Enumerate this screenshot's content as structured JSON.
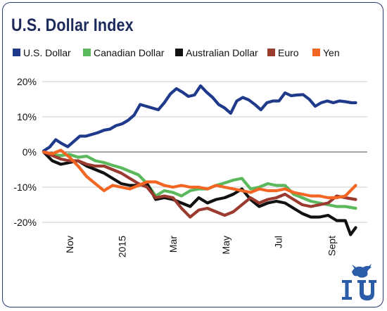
{
  "title": "U.S. Dollar Index",
  "colors": {
    "border": "#2d3a6e",
    "title": "#1b2a5a",
    "grid": "#bdbdbd",
    "baseline": "#4a4a4a",
    "logo": "#2a5ca8"
  },
  "chart_data": {
    "type": "line",
    "title": "U.S. Dollar Index",
    "xlabel": "",
    "ylabel": "",
    "x_start": "2014-10-01",
    "x_end": "2015-09-30",
    "x_tick_labels": [
      "Nov",
      "2015",
      "Mar",
      "May",
      "Jul",
      "Sept"
    ],
    "x_tick_dates": [
      "2014-11-01",
      "2015-01-01",
      "2015-03-01",
      "2015-05-01",
      "2015-07-01",
      "2015-09-01"
    ],
    "y_ticks": [
      20,
      10,
      0,
      -10,
      -20
    ],
    "y_tick_labels": [
      "20%",
      "10%",
      "0%",
      "-10%",
      "-20%"
    ],
    "ylim": [
      -27,
      23
    ],
    "y_unit": "%",
    "grid": true,
    "legend_position": "top",
    "series": [
      {
        "name": "U.S. Dollar",
        "color": "#1f3a8a",
        "dates": [
          "2014-10-01",
          "2014-10-08",
          "2014-10-15",
          "2014-10-22",
          "2014-10-29",
          "2014-11-05",
          "2014-11-12",
          "2014-11-19",
          "2014-11-26",
          "2014-12-03",
          "2014-12-10",
          "2014-12-17",
          "2014-12-24",
          "2014-12-31",
          "2015-01-07",
          "2015-01-14",
          "2015-01-21",
          "2015-01-28",
          "2015-02-04",
          "2015-02-11",
          "2015-02-18",
          "2015-02-25",
          "2015-03-04",
          "2015-03-11",
          "2015-03-18",
          "2015-03-25",
          "2015-04-01",
          "2015-04-08",
          "2015-04-15",
          "2015-04-22",
          "2015-04-29",
          "2015-05-06",
          "2015-05-13",
          "2015-05-20",
          "2015-05-27",
          "2015-06-03",
          "2015-06-10",
          "2015-06-17",
          "2015-06-24",
          "2015-07-01",
          "2015-07-08",
          "2015-07-15",
          "2015-07-22",
          "2015-07-29",
          "2015-08-05",
          "2015-08-12",
          "2015-08-19",
          "2015-08-26",
          "2015-09-02",
          "2015-09-09",
          "2015-09-16",
          "2015-09-23",
          "2015-09-28"
        ],
        "values": [
          0.3,
          1.4,
          3.5,
          2.4,
          1.5,
          3.0,
          4.5,
          4.5,
          5.0,
          5.5,
          6.2,
          6.5,
          7.5,
          8.0,
          9.0,
          10.5,
          13.5,
          13.0,
          12.5,
          12.0,
          14.0,
          16.5,
          18.0,
          17.0,
          15.8,
          16.2,
          18.8,
          17.0,
          15.5,
          13.5,
          12.5,
          11.0,
          14.5,
          15.5,
          14.8,
          13.5,
          12.0,
          14.0,
          14.5,
          14.5,
          16.8,
          16.0,
          16.2,
          16.3,
          15.0,
          13.0,
          14.0,
          14.5,
          14.0,
          14.5,
          14.3,
          14.0,
          14.0
        ]
      },
      {
        "name": "Canadian Dollar",
        "color": "#5cb85c",
        "dates": [
          "2014-10-01",
          "2014-10-11",
          "2014-10-21",
          "2014-10-31",
          "2014-11-10",
          "2014-11-20",
          "2014-11-30",
          "2014-12-10",
          "2014-12-20",
          "2014-12-30",
          "2015-01-09",
          "2015-01-19",
          "2015-01-29",
          "2015-02-08",
          "2015-02-18",
          "2015-02-28",
          "2015-03-10",
          "2015-03-20",
          "2015-03-30",
          "2015-04-09",
          "2015-04-19",
          "2015-04-29",
          "2015-05-09",
          "2015-05-19",
          "2015-05-29",
          "2015-06-08",
          "2015-06-18",
          "2015-06-28",
          "2015-07-08",
          "2015-07-18",
          "2015-07-28",
          "2015-08-07",
          "2015-08-17",
          "2015-08-27",
          "2015-09-06",
          "2015-09-16",
          "2015-09-28"
        ],
        "values": [
          0,
          -0.8,
          -1.0,
          -0.7,
          -1.5,
          -1.2,
          -2.5,
          -3.0,
          -3.8,
          -4.5,
          -5.5,
          -6.5,
          -9.0,
          -12.5,
          -11.0,
          -11.5,
          -12.5,
          -11.0,
          -10.5,
          -10.5,
          -9.5,
          -8.8,
          -8.0,
          -7.5,
          -10.5,
          -10.0,
          -9.0,
          -9.5,
          -9.5,
          -12.0,
          -13.0,
          -14.0,
          -14.5,
          -15.0,
          -15.5,
          -15.5,
          -16.0
        ]
      },
      {
        "name": "Australian Dollar",
        "color": "#111111",
        "dates": [
          "2014-10-01",
          "2014-10-11",
          "2014-10-21",
          "2014-10-31",
          "2014-11-10",
          "2014-11-20",
          "2014-11-30",
          "2014-12-10",
          "2014-12-20",
          "2014-12-30",
          "2015-01-09",
          "2015-01-19",
          "2015-01-29",
          "2015-02-08",
          "2015-02-18",
          "2015-02-28",
          "2015-03-10",
          "2015-03-20",
          "2015-03-30",
          "2015-04-09",
          "2015-04-19",
          "2015-04-29",
          "2015-05-09",
          "2015-05-19",
          "2015-05-29",
          "2015-06-08",
          "2015-06-18",
          "2015-06-28",
          "2015-07-08",
          "2015-07-18",
          "2015-07-28",
          "2015-08-07",
          "2015-08-17",
          "2015-08-27",
          "2015-09-06",
          "2015-09-16",
          "2015-09-22",
          "2015-09-28"
        ],
        "values": [
          0,
          -2.5,
          -3.5,
          -3.0,
          -2.5,
          -4.0,
          -5.0,
          -6.0,
          -7.5,
          -9.0,
          -9.5,
          -9.5,
          -9.0,
          -13.5,
          -13.0,
          -13.5,
          -14.5,
          -15.5,
          -13.0,
          -14.5,
          -13.5,
          -13.0,
          -12.0,
          -10.5,
          -13.5,
          -15.5,
          -14.5,
          -14.0,
          -14.5,
          -16.0,
          -17.5,
          -18.5,
          -18.5,
          -18.0,
          -19.5,
          -19.5,
          -23.5,
          -21.5
        ]
      },
      {
        "name": "Euro",
        "color": "#9b3a2e",
        "dates": [
          "2014-10-01",
          "2014-10-11",
          "2014-10-21",
          "2014-10-31",
          "2014-11-10",
          "2014-11-20",
          "2014-11-30",
          "2014-12-10",
          "2014-12-20",
          "2014-12-30",
          "2015-01-09",
          "2015-01-19",
          "2015-01-29",
          "2015-02-08",
          "2015-02-18",
          "2015-02-28",
          "2015-03-10",
          "2015-03-20",
          "2015-03-30",
          "2015-04-09",
          "2015-04-19",
          "2015-04-29",
          "2015-05-09",
          "2015-05-19",
          "2015-05-29",
          "2015-06-08",
          "2015-06-18",
          "2015-06-28",
          "2015-07-08",
          "2015-07-18",
          "2015-07-28",
          "2015-08-07",
          "2015-08-17",
          "2015-08-27",
          "2015-09-06",
          "2015-09-16",
          "2015-09-28"
        ],
        "values": [
          0,
          -1.0,
          -2.0,
          -2.5,
          -2.5,
          -3.5,
          -4.0,
          -4.0,
          -5.0,
          -6.0,
          -7.5,
          -9.0,
          -10.0,
          -13.0,
          -12.5,
          -13.0,
          -16.0,
          -18.5,
          -16.5,
          -16.0,
          -17.0,
          -18.0,
          -17.0,
          -15.0,
          -13.0,
          -14.5,
          -13.5,
          -13.0,
          -12.0,
          -13.5,
          -15.0,
          -15.5,
          -15.0,
          -14.5,
          -12.5,
          -13.0,
          -13.5
        ]
      },
      {
        "name": "Yen",
        "color": "#f26522",
        "dates": [
          "2014-10-01",
          "2014-10-11",
          "2014-10-21",
          "2014-10-31",
          "2014-11-10",
          "2014-11-20",
          "2014-11-30",
          "2014-12-10",
          "2014-12-20",
          "2014-12-30",
          "2015-01-09",
          "2015-01-19",
          "2015-01-29",
          "2015-02-08",
          "2015-02-18",
          "2015-02-28",
          "2015-03-10",
          "2015-03-20",
          "2015-03-30",
          "2015-04-09",
          "2015-04-19",
          "2015-04-29",
          "2015-05-09",
          "2015-05-19",
          "2015-05-29",
          "2015-06-08",
          "2015-06-18",
          "2015-06-28",
          "2015-07-08",
          "2015-07-18",
          "2015-07-28",
          "2015-08-07",
          "2015-08-17",
          "2015-08-27",
          "2015-09-06",
          "2015-09-16",
          "2015-09-28"
        ],
        "values": [
          0,
          -0.5,
          0.5,
          -1.5,
          -4.0,
          -7.0,
          -9.0,
          -11.0,
          -9.5,
          -10.0,
          -10.5,
          -9.5,
          -8.5,
          -8.5,
          -9.5,
          -10.0,
          -9.5,
          -10.0,
          -10.0,
          -10.5,
          -9.5,
          -10.0,
          -10.5,
          -11.0,
          -11.5,
          -10.5,
          -11.0,
          -11.0,
          -10.5,
          -11.5,
          -12.0,
          -12.5,
          -12.5,
          -13.0,
          -13.0,
          -12.5,
          -9.5
        ]
      }
    ]
  }
}
